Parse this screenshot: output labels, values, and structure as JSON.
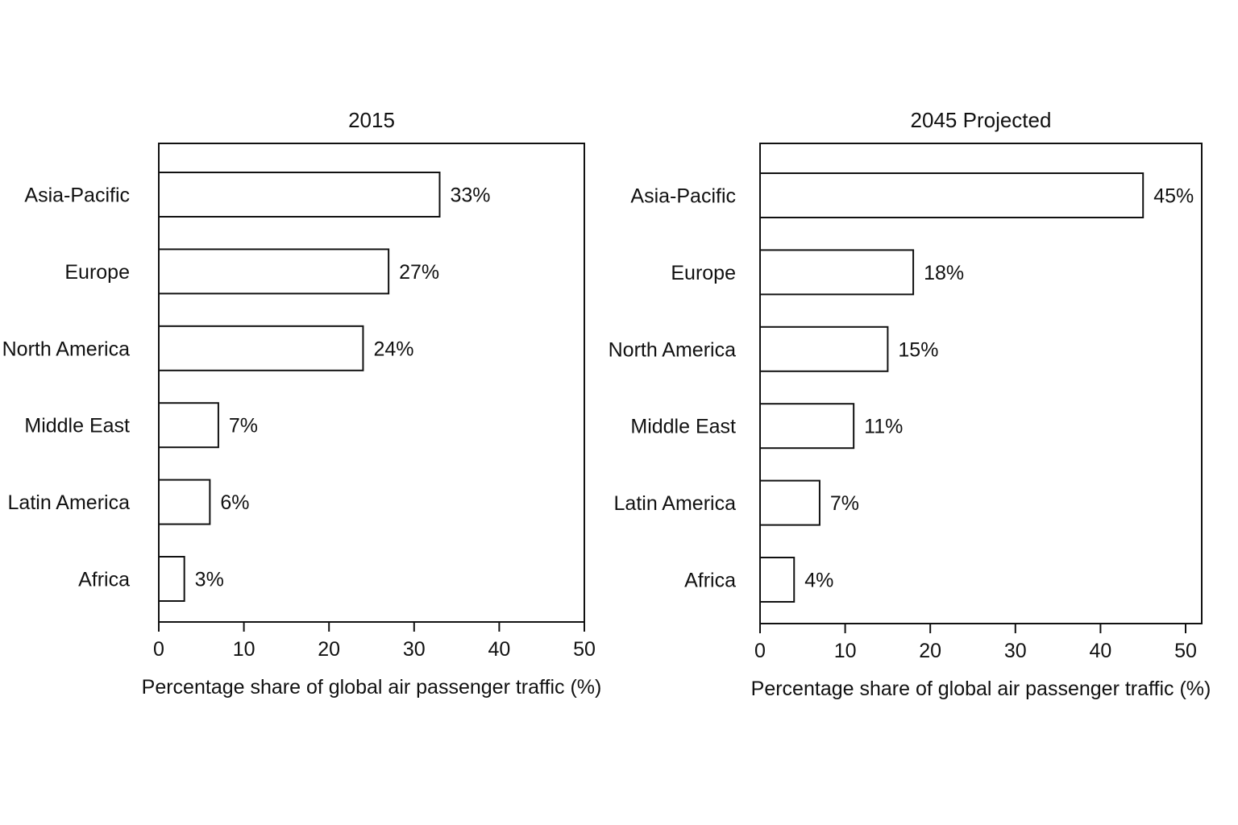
{
  "chart_data": [
    {
      "type": "bar",
      "orientation": "horizontal",
      "title": "2015",
      "xlabel": "Percentage share of global air passenger traffic (%)",
      "ylabel": "",
      "categories": [
        "Asia-Pacific",
        "Europe",
        "North America",
        "Middle East",
        "Latin America",
        "Africa"
      ],
      "values": [
        33,
        27,
        24,
        7,
        6,
        3
      ],
      "data_labels": [
        "33%",
        "27%",
        "24%",
        "7%",
        "6%",
        "3%"
      ],
      "xlim": [
        0,
        50
      ],
      "xticks": [
        "0",
        "10",
        "20",
        "30",
        "40",
        "50"
      ],
      "grid": false,
      "bar_fill": "#ffffff",
      "bar_stroke": "#111111"
    },
    {
      "type": "bar",
      "orientation": "horizontal",
      "title": "2045 Projected",
      "xlabel": "Percentage share of global air passenger traffic (%)",
      "ylabel": "",
      "categories": [
        "Asia-Pacific",
        "Europe",
        "North America",
        "Middle East",
        "Latin America",
        "Africa"
      ],
      "values": [
        45,
        18,
        15,
        11,
        7,
        4
      ],
      "data_labels": [
        "45%",
        "18%",
        "15%",
        "11%",
        "7%",
        "4%"
      ],
      "xlim": [
        0,
        50
      ],
      "xticks": [
        "0",
        "10",
        "20",
        "30",
        "40",
        "50"
      ],
      "grid": false,
      "bar_fill": "#ffffff",
      "bar_stroke": "#111111"
    }
  ]
}
